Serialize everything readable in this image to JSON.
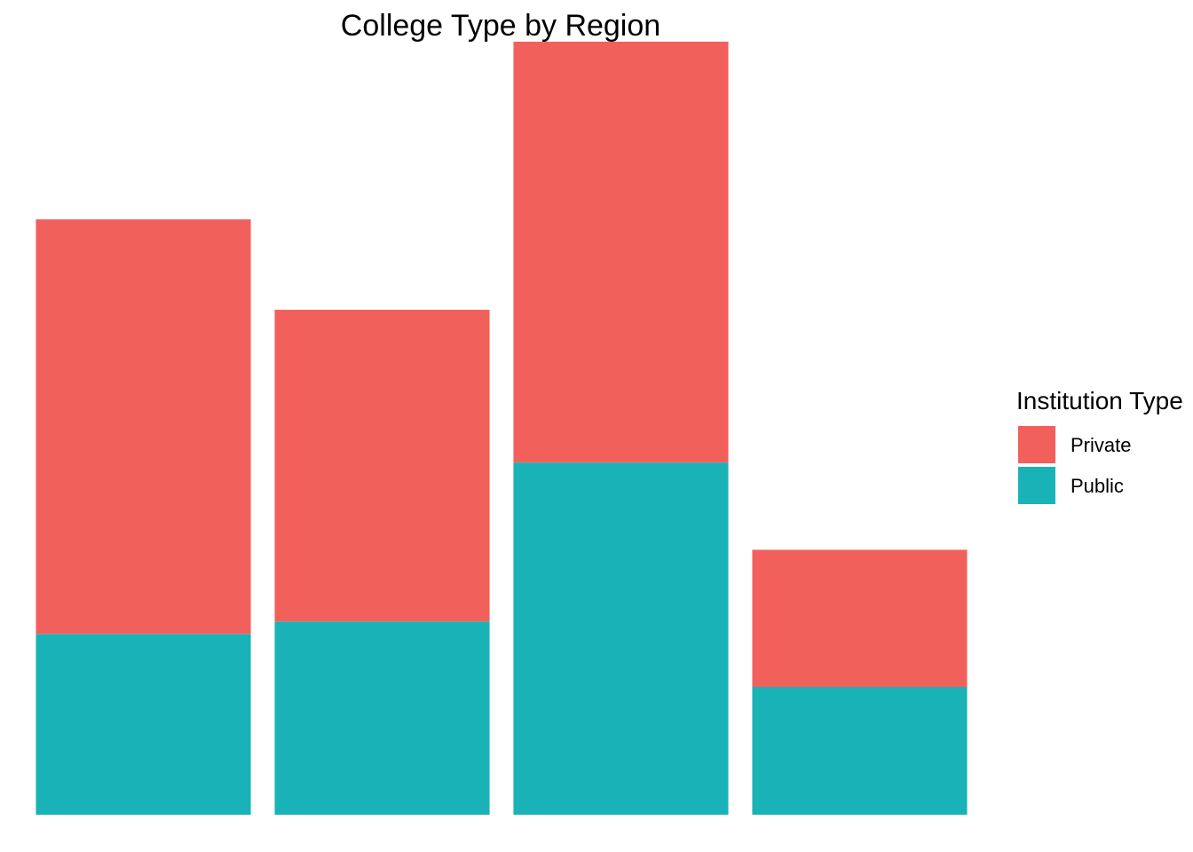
{
  "chart_data": {
    "type": "bar",
    "stacked": true,
    "title": "College Type by Region",
    "xlabel": "",
    "ylabel": "",
    "categories": [
      "",
      "",
      "",
      ""
    ],
    "series": [
      {
        "name": "Public",
        "color": "#19B3B7",
        "values": [
          58,
          62,
          113,
          41
        ]
      },
      {
        "name": "Private",
        "color": "#F2605C",
        "values": [
          133,
          100,
          135,
          44
        ]
      }
    ],
    "ylim": [
      0,
      248
    ],
    "grid": false,
    "axes_visible": false,
    "legend": {
      "title": "Institution Type",
      "placement": "right",
      "order": [
        "Private",
        "Public"
      ]
    }
  }
}
